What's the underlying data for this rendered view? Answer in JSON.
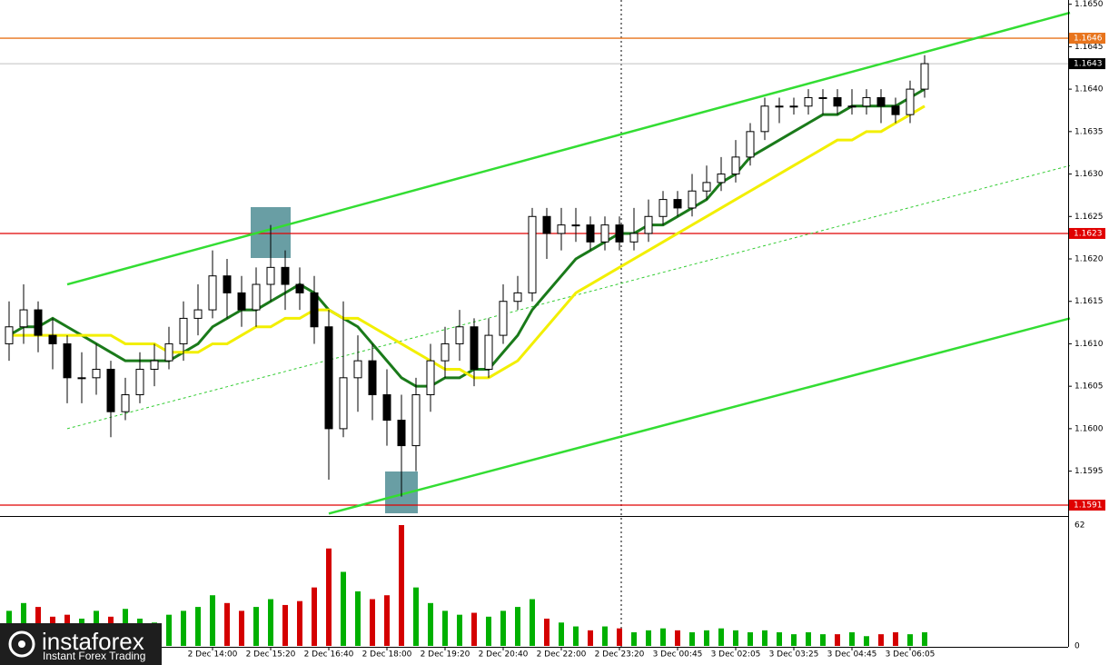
{
  "chart_data": {
    "type": "candlestick",
    "ylim": [
      1.15895,
      1.16505
    ],
    "yticks": [
      1.1595,
      {
        "value": 1.16,
        "label": "1.1600"
      },
      1.1605,
      {
        "value": 1.161,
        "label": "1.1610"
      },
      1.1615,
      {
        "value": 1.162,
        "label": "1.1620"
      },
      1.1625,
      {
        "value": 1.163,
        "label": "1.1630"
      },
      1.1635,
      {
        "value": 1.164,
        "label": "1.1640"
      },
      1.1645,
      {
        "value": 1.165,
        "label": "1.1650"
      }
    ],
    "xticks": [
      {
        "value": 14,
        "label": "2 Dec 14:00"
      },
      {
        "value": 18,
        "label": "2 Dec 15:20"
      },
      {
        "value": 22,
        "label": "2 Dec 16:40"
      },
      {
        "value": 26,
        "label": "2 Dec 18:00"
      },
      {
        "value": 30,
        "label": "2 Dec 19:20"
      },
      {
        "value": 34,
        "label": "2 Dec 20:40"
      },
      {
        "value": 38,
        "label": "2 Dec 22:00"
      },
      {
        "value": 42,
        "label": "2 Dec 23:20"
      },
      {
        "value": 46,
        "label": "3 Dec 00:45"
      },
      {
        "value": 50,
        "label": "3 Dec 02:05"
      },
      {
        "value": 54,
        "label": "3 Dec 03:25"
      },
      {
        "value": 58,
        "label": "3 Dec 04:45"
      },
      {
        "value": 62,
        "label": "3 Dec 06:05"
      }
    ],
    "open": [
      1.161,
      1.1612,
      1.1614,
      1.1611,
      1.161,
      1.1606,
      1.1606,
      1.1607,
      1.1602,
      1.1604,
      1.1607,
      1.1608,
      1.161,
      1.1613,
      1.1614,
      1.1618,
      1.1616,
      1.1614,
      1.1617,
      1.1619,
      1.1617,
      1.1616,
      1.1612,
      1.16,
      1.1606,
      1.1608,
      1.1604,
      1.1601,
      1.1598,
      1.1604,
      1.1608,
      1.161,
      1.1612,
      1.1607,
      1.1611,
      1.1615,
      1.1616,
      1.1625,
      1.1623,
      1.1624,
      1.1624,
      1.1622,
      1.1624,
      1.1622,
      1.1623,
      1.1625,
      1.1627,
      1.1626,
      1.1628,
      1.1629,
      1.163,
      1.1632,
      1.1635,
      1.1638,
      1.1638,
      1.1638,
      1.1639,
      1.1639,
      1.1638,
      1.1638,
      1.1639,
      1.1638,
      1.1637,
      1.164
    ],
    "high": [
      1.1615,
      1.1617,
      1.1615,
      1.1613,
      1.1611,
      1.1609,
      1.161,
      1.1608,
      1.1606,
      1.1609,
      1.161,
      1.1612,
      1.1615,
      1.1617,
      1.1621,
      1.162,
      1.1618,
      1.1619,
      1.1624,
      1.1621,
      1.1619,
      1.1618,
      1.1614,
      1.1615,
      1.1611,
      1.161,
      1.1607,
      1.1604,
      1.1606,
      1.161,
      1.1612,
      1.1614,
      1.1613,
      1.1613,
      1.1617,
      1.1618,
      1.1626,
      1.1626,
      1.1626,
      1.1626,
      1.1625,
      1.1625,
      1.1625,
      1.1626,
      1.1627,
      1.1628,
      1.1628,
      1.163,
      1.1631,
      1.1632,
      1.1634,
      1.1636,
      1.1639,
      1.1639,
      1.1639,
      1.164,
      1.164,
      1.164,
      1.164,
      1.164,
      1.164,
      1.1639,
      1.1641,
      1.1644
    ],
    "low": [
      1.1608,
      1.161,
      1.1609,
      1.1607,
      1.1603,
      1.1603,
      1.1604,
      1.1599,
      1.1601,
      1.1603,
      1.1605,
      1.1607,
      1.1608,
      1.1611,
      1.1613,
      1.1613,
      1.1612,
      1.1612,
      1.1615,
      1.1614,
      1.1614,
      1.161,
      1.1594,
      1.1599,
      1.1602,
      1.1601,
      1.1598,
      1.1592,
      1.1595,
      1.1602,
      1.1606,
      1.1608,
      1.1605,
      1.1606,
      1.161,
      1.1614,
      1.1615,
      1.162,
      1.1621,
      1.1622,
      1.1621,
      1.1621,
      1.1621,
      1.1621,
      1.1622,
      1.1624,
      1.1625,
      1.1625,
      1.1627,
      1.1628,
      1.1629,
      1.1631,
      1.1634,
      1.1636,
      1.1637,
      1.1637,
      1.1637,
      1.1637,
      1.1637,
      1.1637,
      1.1636,
      1.1636,
      1.1636,
      1.1639
    ],
    "close": [
      1.1612,
      1.1614,
      1.1611,
      1.161,
      1.1606,
      1.1606,
      1.1607,
      1.1602,
      1.1604,
      1.1607,
      1.1608,
      1.161,
      1.1613,
      1.1614,
      1.1618,
      1.1616,
      1.1614,
      1.1617,
      1.1619,
      1.1617,
      1.1616,
      1.1612,
      1.16,
      1.1606,
      1.1608,
      1.1604,
      1.1601,
      1.1598,
      1.1604,
      1.1608,
      1.161,
      1.1612,
      1.1607,
      1.1611,
      1.1615,
      1.1616,
      1.1625,
      1.1623,
      1.1624,
      1.1624,
      1.1622,
      1.1624,
      1.1622,
      1.1623,
      1.1625,
      1.1627,
      1.1626,
      1.1628,
      1.1629,
      1.163,
      1.1632,
      1.1635,
      1.1638,
      1.1638,
      1.1638,
      1.1639,
      1.1639,
      1.1638,
      1.1638,
      1.1639,
      1.1638,
      1.1637,
      1.164,
      1.1643
    ],
    "ma": [
      {
        "color": "#1a7a1a",
        "values": [
          1.1611,
          1.1612,
          1.1612,
          1.1613,
          1.1612,
          1.1611,
          1.161,
          1.1609,
          1.1608,
          1.1608,
          1.1608,
          1.1608,
          1.1609,
          1.161,
          1.1612,
          1.1613,
          1.1614,
          1.1614,
          1.1615,
          1.1616,
          1.1617,
          1.1616,
          1.1614,
          1.1613,
          1.1612,
          1.161,
          1.1608,
          1.1606,
          1.1605,
          1.1605,
          1.1606,
          1.1606,
          1.1607,
          1.1607,
          1.1609,
          1.1611,
          1.1614,
          1.1616,
          1.1618,
          1.162,
          1.1621,
          1.1622,
          1.1623,
          1.1623,
          1.1624,
          1.1624,
          1.1625,
          1.1626,
          1.1627,
          1.1629,
          1.163,
          1.1632,
          1.1633,
          1.1634,
          1.1635,
          1.1636,
          1.1637,
          1.1637,
          1.1638,
          1.1638,
          1.1638,
          1.1638,
          1.1639,
          1.164
        ]
      },
      {
        "color": "#f2ef00",
        "values": [
          1.1611,
          1.1611,
          1.1611,
          1.1611,
          1.1611,
          1.1611,
          1.1611,
          1.1611,
          1.161,
          1.161,
          1.161,
          1.1609,
          1.1609,
          1.1609,
          1.161,
          1.161,
          1.1611,
          1.1612,
          1.1612,
          1.1613,
          1.1613,
          1.1614,
          1.1614,
          1.1613,
          1.1613,
          1.1612,
          1.1611,
          1.161,
          1.1609,
          1.1608,
          1.1607,
          1.1607,
          1.1606,
          1.1606,
          1.1607,
          1.1608,
          1.161,
          1.1612,
          1.1614,
          1.1616,
          1.1617,
          1.1618,
          1.1619,
          1.162,
          1.1621,
          1.1622,
          1.1623,
          1.1624,
          1.1625,
          1.1626,
          1.1627,
          1.1628,
          1.1629,
          1.163,
          1.1631,
          1.1632,
          1.1633,
          1.1634,
          1.1634,
          1.1635,
          1.1635,
          1.1636,
          1.1637,
          1.1638
        ]
      }
    ],
    "trendlines": [
      {
        "color": "#33dd33",
        "dashed": false,
        "x": [
          4,
          73
        ],
        "y": [
          1.1617,
          1.1649
        ]
      },
      {
        "color": "#33dd33",
        "dashed": false,
        "x": [
          22,
          73
        ],
        "y": [
          1.159,
          1.1613
        ]
      },
      {
        "color": "#33cc33",
        "dashed": true,
        "x": [
          4,
          73
        ],
        "y": [
          1.16,
          1.1631
        ]
      }
    ],
    "levels": [
      {
        "value": 1.1646,
        "color": "#e8741c"
      },
      {
        "value": 1.1623,
        "color": "#e00000"
      },
      {
        "value": 1.1591,
        "color": "#e00000"
      }
    ],
    "last_price": 1.1643,
    "volume": [
      18,
      22,
      20,
      15,
      16,
      14,
      18,
      15,
      19,
      14,
      12,
      16,
      18,
      20,
      26,
      22,
      18,
      20,
      24,
      21,
      23,
      30,
      50,
      38,
      28,
      24,
      26,
      62,
      30,
      22,
      18,
      16,
      17,
      15,
      18,
      20,
      24,
      14,
      12,
      10,
      8,
      10,
      9,
      7,
      8,
      9,
      8,
      7,
      8,
      9,
      8,
      7,
      8,
      7,
      6,
      7,
      6,
      6,
      7,
      5,
      6,
      7,
      6,
      7
    ],
    "volume_ylim": [
      0,
      62
    ],
    "volume_yticks": [
      0,
      62
    ],
    "volume_colors": {
      "up": "#00b000",
      "down": "#d40000"
    }
  },
  "logo": {
    "name": "instaforex",
    "tagline": "Instant Forex Trading"
  }
}
